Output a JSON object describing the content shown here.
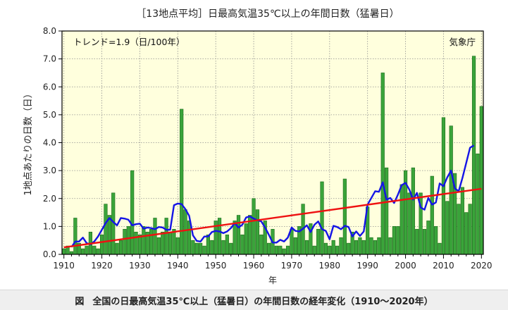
{
  "caption": {
    "prefix": "図",
    "text": "全国の日最高気温35℃以上（猛暑日）の年間日数の経年変化（1910～2020年）"
  },
  "colors": {
    "plot_bg": "#ffffdd",
    "bar_fill": "#3aa43a",
    "bar_stroke": "#1a6a1a",
    "moving_avg": "#1414e6",
    "trend": "#ee1111",
    "grid": "#909090"
  },
  "chart_data": {
    "type": "bar",
    "title": "［13地点平均］日最高気温35℃以上の年間日数（猛暑日）",
    "xlabel": "年",
    "ylabel": "1地点あたりの日数（日）",
    "xlim": [
      1910,
      2020
    ],
    "ylim": [
      0,
      8
    ],
    "xticks": [
      1910,
      1920,
      1930,
      1940,
      1950,
      1960,
      1970,
      1980,
      1990,
      2000,
      2010,
      2020
    ],
    "yticks": [
      "0.0",
      "1.0",
      "2.0",
      "3.0",
      "4.0",
      "5.0",
      "6.0",
      "7.0",
      "8.0"
    ],
    "grid": true,
    "annotations": {
      "trend_label": "トレンド=1.9（日/100年）",
      "source": "気象庁"
    },
    "series": [
      {
        "type": "bar",
        "x": [
          1910,
          1911,
          1912,
          1913,
          1914,
          1915,
          1916,
          1917,
          1918,
          1919,
          1920,
          1921,
          1922,
          1923,
          1924,
          1925,
          1926,
          1927,
          1928,
          1929,
          1930,
          1931,
          1932,
          1933,
          1934,
          1935,
          1936,
          1937,
          1938,
          1939,
          1940,
          1941,
          1942,
          1943,
          1944,
          1945,
          1946,
          1947,
          1948,
          1949,
          1950,
          1951,
          1952,
          1953,
          1954,
          1955,
          1956,
          1957,
          1958,
          1959,
          1960,
          1961,
          1962,
          1963,
          1964,
          1965,
          1966,
          1967,
          1968,
          1969,
          1970,
          1971,
          1972,
          1973,
          1974,
          1975,
          1976,
          1977,
          1978,
          1979,
          1980,
          1981,
          1982,
          1983,
          1984,
          1985,
          1986,
          1987,
          1988,
          1989,
          1990,
          1991,
          1992,
          1993,
          1994,
          1995,
          1996,
          1997,
          1998,
          1999,
          2000,
          2001,
          2002,
          2003,
          2004,
          2005,
          2006,
          2007,
          2008,
          2009,
          2010,
          2011,
          2012,
          2013,
          2014,
          2015,
          2016,
          2017,
          2018,
          2019,
          2020
        ],
        "values": [
          0.2,
          0.3,
          0.1,
          1.3,
          0.4,
          0.2,
          0.3,
          0.8,
          0.3,
          0.2,
          0.7,
          1.8,
          1.4,
          2.2,
          0.4,
          0.5,
          0.9,
          1.0,
          3.0,
          0.8,
          0.7,
          1.0,
          0.8,
          0.9,
          1.3,
          0.6,
          0.8,
          1.3,
          0.8,
          0.9,
          0.6,
          5.2,
          1.6,
          1.2,
          0.5,
          0.4,
          0.4,
          0.3,
          0.7,
          0.5,
          1.2,
          1.3,
          0.5,
          0.7,
          0.4,
          1.2,
          1.4,
          0.7,
          1.1,
          1.4,
          2.0,
          1.6,
          0.7,
          1.2,
          0.4,
          0.9,
          0.3,
          0.3,
          0.2,
          0.3,
          0.9,
          0.6,
          1.0,
          1.8,
          0.5,
          1.1,
          0.3,
          0.9,
          2.6,
          0.4,
          0.3,
          0.5,
          0.3,
          0.6,
          2.7,
          0.4,
          0.8,
          0.5,
          0.6,
          0.5,
          1.7,
          0.6,
          0.5,
          0.6,
          6.5,
          3.1,
          0.6,
          1.0,
          1.0,
          2.5,
          3.0,
          2.2,
          3.1,
          0.9,
          2.2,
          0.9,
          1.2,
          2.8,
          1.0,
          0.4,
          4.9,
          1.9,
          4.6,
          2.9,
          1.8,
          2.4,
          1.5,
          1.8,
          7.1,
          3.6,
          5.3
        ]
      },
      {
        "type": "line",
        "name": "5-year moving average",
        "x": [
          1912,
          1913,
          1914,
          1915,
          1916,
          1917,
          1918,
          1919,
          1920,
          1921,
          1922,
          1923,
          1924,
          1925,
          1926,
          1927,
          1928,
          1929,
          1930,
          1931,
          1932,
          1933,
          1934,
          1935,
          1936,
          1937,
          1938,
          1939,
          1940,
          1941,
          1942,
          1943,
          1944,
          1945,
          1946,
          1947,
          1948,
          1949,
          1950,
          1951,
          1952,
          1953,
          1954,
          1955,
          1956,
          1957,
          1958,
          1959,
          1960,
          1961,
          1962,
          1963,
          1964,
          1965,
          1966,
          1967,
          1968,
          1969,
          1970,
          1971,
          1972,
          1973,
          1974,
          1975,
          1976,
          1977,
          1978,
          1979,
          1980,
          1981,
          1982,
          1983,
          1984,
          1985,
          1986,
          1987,
          1988,
          1989,
          1990,
          1991,
          1992,
          1993,
          1994,
          1995,
          1996,
          1997,
          1998,
          1999,
          2000,
          2001,
          2002,
          2003,
          2004,
          2005,
          2006,
          2007,
          2008,
          2009,
          2010,
          2011,
          2012,
          2013,
          2014,
          2015,
          2016,
          2017,
          2018
        ],
        "values": [
          0.26,
          0.46,
          0.46,
          0.6,
          0.4,
          0.36,
          0.46,
          0.64,
          0.88,
          1.12,
          1.3,
          1.16,
          1.04,
          1.3,
          1.28,
          1.24,
          1.04,
          1.08,
          1.1,
          0.92,
          0.96,
          0.94,
          0.9,
          0.98,
          0.96,
          0.88,
          0.88,
          1.76,
          1.82,
          1.8,
          1.62,
          1.38,
          0.68,
          0.48,
          0.46,
          0.64,
          0.64,
          0.8,
          0.84,
          0.82,
          0.76,
          0.82,
          0.94,
          1.12,
          0.96,
          1.06,
          1.32,
          1.36,
          1.28,
          1.22,
          1.18,
          0.96,
          0.7,
          0.42,
          0.42,
          0.52,
          0.46,
          0.6,
          0.96,
          0.84,
          0.82,
          0.92,
          1.04,
          0.8,
          1.06,
          1.18,
          0.9,
          0.84,
          0.54,
          1.02,
          0.98,
          0.9,
          1.02,
          0.98,
          0.64,
          0.82,
          0.66,
          0.82,
          1.78,
          2.02,
          2.26,
          2.24,
          2.58,
          1.96,
          2.02,
          1.84,
          2.14,
          2.48,
          2.56,
          2.32,
          1.96,
          2.2,
          1.68,
          1.6,
          2.02,
          1.78,
          1.86,
          2.54,
          2.44,
          2.76,
          3.0,
          2.36,
          2.26,
          2.74,
          3.28,
          3.82,
          3.9
        ]
      },
      {
        "type": "line",
        "name": "trend",
        "x": [
          1910,
          2020
        ],
        "values": [
          0.25,
          2.35
        ]
      }
    ]
  }
}
